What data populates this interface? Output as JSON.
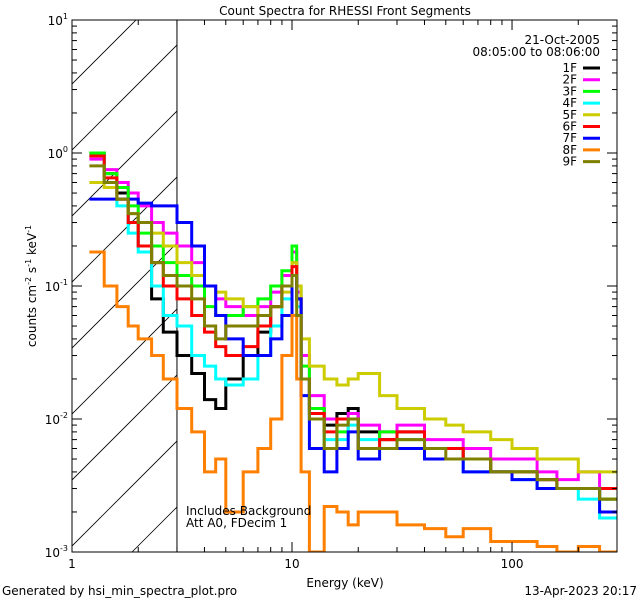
{
  "chart_data": {
    "type": "line",
    "title": "Count Spectra for RHESSI Front Segments",
    "xlabel": "Energy (keV)",
    "ylabel": "counts cm^-2 s^-1 keV^-1",
    "ylabel_parts": {
      "base": "counts cm",
      "e1": "-2",
      "mid": " s",
      "e2": "-1",
      "mid2": " keV",
      "e3": "-1"
    },
    "xscale": "log",
    "yscale": "log",
    "xlim": [
      1,
      300
    ],
    "ylim": [
      0.001,
      10
    ],
    "xticks": [
      {
        "v": 1,
        "label": "1"
      },
      {
        "v": 10,
        "label": "10"
      },
      {
        "v": 100,
        "label": "100"
      }
    ],
    "yticks": [
      {
        "v": 10,
        "base": "10",
        "exp": "1"
      },
      {
        "v": 1,
        "base": "10",
        "exp": "0"
      },
      {
        "v": 0.1,
        "base": "10",
        "exp": "-1"
      },
      {
        "v": 0.01,
        "base": "10",
        "exp": "-2"
      },
      {
        "v": 0.001,
        "base": "10",
        "exp": "-3"
      }
    ],
    "date": "21-Oct-2005",
    "time_range": "08:05:00 to 08:06:00",
    "annotation1": "Includes Background",
    "annotation2": "Att A0, FDecim 1",
    "hatched_region_keV": [
      1,
      3
    ],
    "energy_edges": [
      1.2,
      1.4,
      1.6,
      1.8,
      2.0,
      2.3,
      2.6,
      3.0,
      3.5,
      4.0,
      4.5,
      5.0,
      6.0,
      7.0,
      8.0,
      9.0,
      10.0,
      10.5,
      11.0,
      12.0,
      14,
      16,
      18,
      20,
      25,
      30,
      40,
      50,
      60,
      80,
      100,
      130,
      160,
      200,
      250,
      300
    ],
    "series": [
      {
        "name": "1F",
        "color": "#000000",
        "values": [
          1.0,
          0.7,
          0.5,
          0.3,
          0.2,
          0.08,
          0.045,
          0.03,
          0.022,
          0.014,
          0.012,
          0.02,
          0.03,
          0.045,
          0.07,
          0.1,
          0.15,
          0.08,
          0.02,
          0.012,
          0.009,
          0.011,
          0.012,
          0.008,
          0.007,
          0.008,
          0.006,
          0.006,
          0.005,
          0.004,
          0.004,
          0.0035,
          0.003,
          0.003,
          0.0025
        ]
      },
      {
        "name": "2F",
        "color": "#ff00ff",
        "values": [
          0.9,
          0.75,
          0.6,
          0.5,
          0.4,
          0.3,
          0.25,
          0.2,
          0.15,
          0.1,
          0.08,
          0.07,
          0.06,
          0.07,
          0.09,
          0.12,
          0.18,
          0.09,
          0.03,
          0.015,
          0.01,
          0.01,
          0.011,
          0.009,
          0.008,
          0.009,
          0.007,
          0.007,
          0.006,
          0.005,
          0.005,
          0.004,
          0.0035,
          0.004,
          0.003
        ]
      },
      {
        "name": "3F",
        "color": "#00ff00",
        "values": [
          1.0,
          0.7,
          0.55,
          0.4,
          0.25,
          0.2,
          0.15,
          0.12,
          0.1,
          0.07,
          0.06,
          0.06,
          0.07,
          0.08,
          0.1,
          0.13,
          0.2,
          0.1,
          0.025,
          0.012,
          0.006,
          0.008,
          0.01,
          0.006,
          0.008,
          0.007,
          0.006,
          0.006,
          0.005,
          0.004,
          0.004,
          0.003,
          0.003,
          0.003,
          0.0025
        ]
      },
      {
        "name": "4F",
        "color": "#00ffff",
        "values": [
          0.95,
          0.6,
          0.4,
          0.25,
          0.18,
          0.1,
          0.06,
          0.05,
          0.03,
          0.025,
          0.02,
          0.018,
          0.02,
          0.03,
          0.05,
          0.08,
          0.12,
          0.07,
          0.02,
          0.01,
          0.007,
          0.007,
          0.009,
          0.007,
          0.006,
          0.006,
          0.005,
          0.005,
          0.004,
          0.004,
          0.0035,
          0.003,
          0.003,
          0.0025,
          0.0018
        ]
      },
      {
        "name": "5F",
        "color": "#cccc00",
        "values": [
          0.6,
          0.55,
          0.45,
          0.35,
          0.3,
          0.25,
          0.2,
          0.15,
          0.12,
          0.1,
          0.09,
          0.08,
          0.07,
          0.06,
          0.07,
          0.09,
          0.15,
          0.1,
          0.04,
          0.025,
          0.02,
          0.018,
          0.02,
          0.022,
          0.015,
          0.012,
          0.01,
          0.009,
          0.008,
          0.007,
          0.006,
          0.005,
          0.005,
          0.004,
          0.004
        ]
      },
      {
        "name": "6F",
        "color": "#ff0000",
        "values": [
          0.95,
          0.65,
          0.45,
          0.3,
          0.2,
          0.15,
          0.1,
          0.08,
          0.06,
          0.045,
          0.035,
          0.03,
          0.035,
          0.05,
          0.07,
          0.1,
          0.14,
          0.08,
          0.02,
          0.011,
          0.008,
          0.01,
          0.01,
          0.006,
          0.007,
          0.008,
          0.006,
          0.006,
          0.005,
          0.004,
          0.004,
          0.0035,
          0.003,
          0.003,
          0.003
        ]
      },
      {
        "name": "7F",
        "color": "#0000ff",
        "values": [
          0.45,
          0.45,
          0.45,
          0.45,
          0.42,
          0.4,
          0.4,
          0.3,
          0.2,
          0.1,
          0.06,
          0.04,
          0.03,
          0.03,
          0.04,
          0.06,
          0.12,
          0.08,
          0.015,
          0.006,
          0.004,
          0.006,
          0.008,
          0.005,
          0.006,
          0.006,
          0.005,
          0.005,
          0.004,
          0.004,
          0.0035,
          0.003,
          0.003,
          0.003,
          0.002
        ]
      },
      {
        "name": "8F",
        "color": "#ff8000",
        "values": [
          0.18,
          0.1,
          0.07,
          0.05,
          0.04,
          0.03,
          0.02,
          0.012,
          0.008,
          0.004,
          0.005,
          0.002,
          0.004,
          0.006,
          0.01,
          0.03,
          0.06,
          0.02,
          0.004,
          0.001,
          0.0022,
          0.002,
          0.0016,
          0.002,
          0.002,
          0.0016,
          0.0015,
          0.0013,
          0.0015,
          0.0012,
          0.0012,
          0.0011,
          0.001,
          0.0011,
          0.001
        ]
      },
      {
        "name": "9F",
        "color": "#808000",
        "values": [
          0.8,
          0.6,
          0.45,
          0.35,
          0.3,
          0.15,
          0.12,
          0.1,
          0.08,
          0.05,
          0.04,
          0.05,
          0.05,
          0.06,
          0.07,
          0.1,
          0.12,
          0.06,
          0.02,
          0.01,
          0.006,
          0.009,
          0.01,
          0.006,
          0.006,
          0.007,
          0.006,
          0.005,
          0.005,
          0.004,
          0.004,
          0.0035,
          0.003,
          0.003,
          0.0025
        ]
      }
    ]
  },
  "footer": {
    "generated_by": "Generated by hsi_min_spectra_plot.pro",
    "timestamp": "13-Apr-2023 20:17"
  }
}
